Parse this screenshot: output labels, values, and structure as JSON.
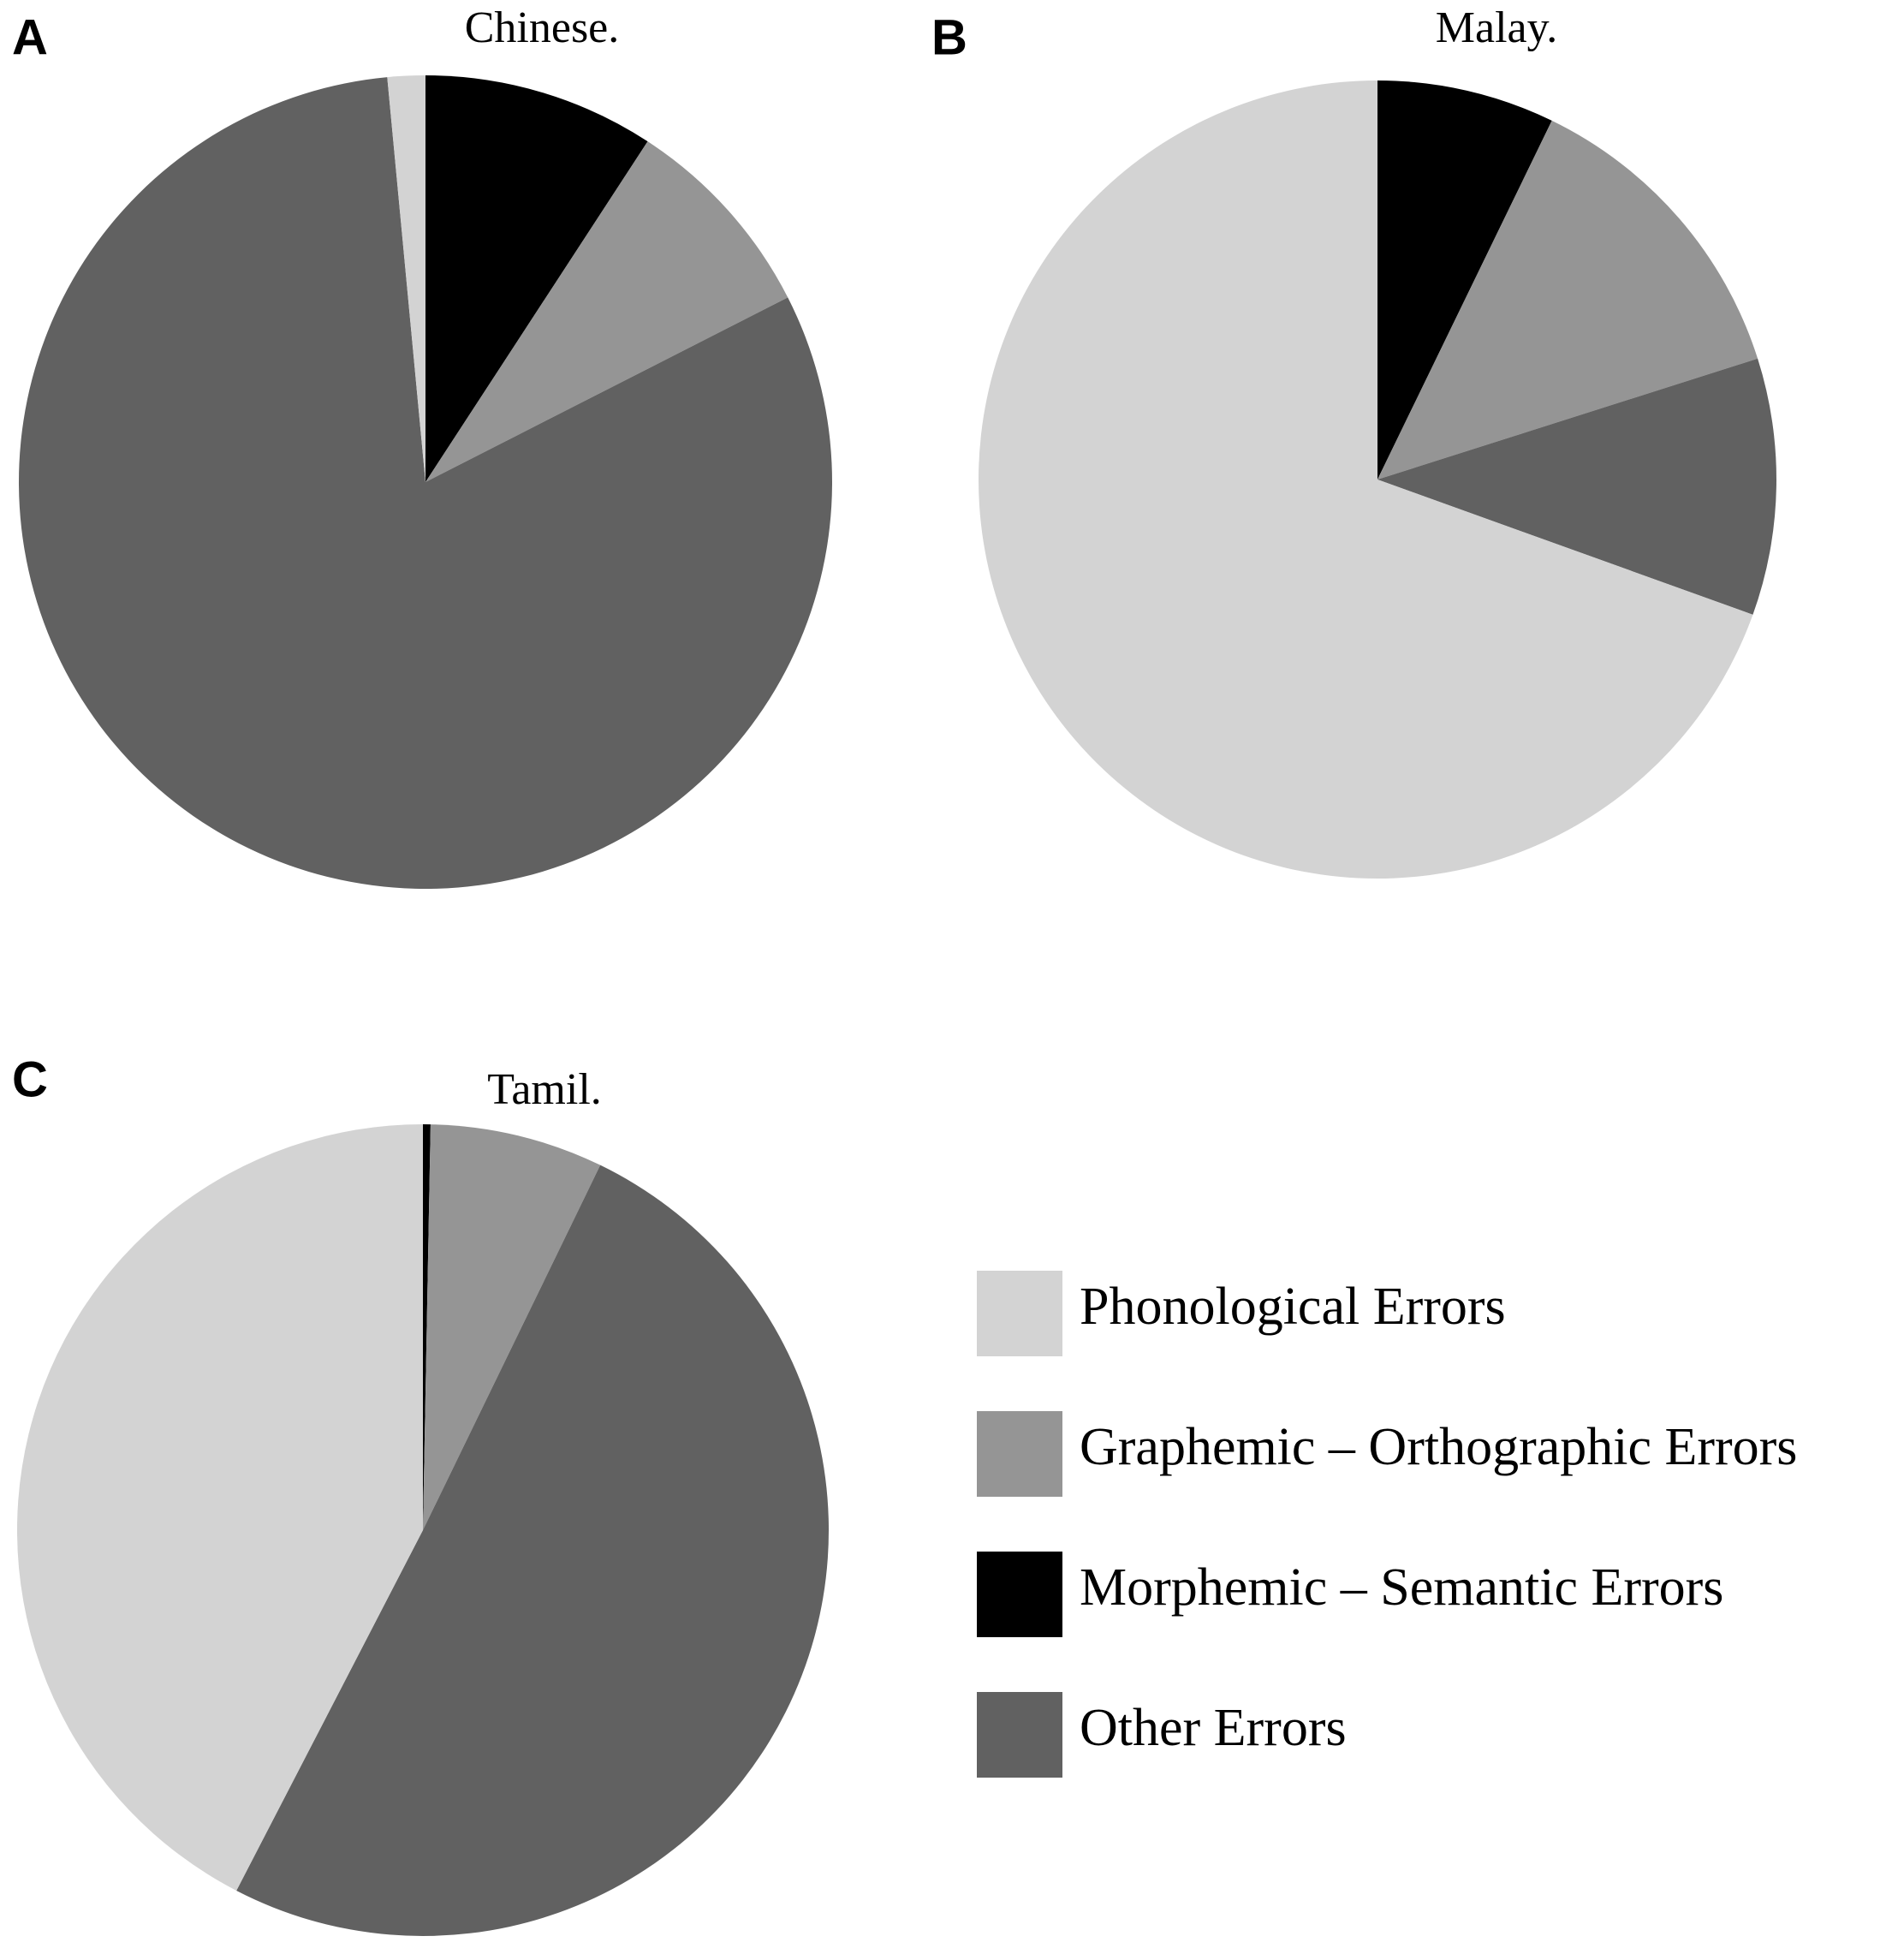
{
  "legend": {
    "labels": [
      "Phonological Errors",
      "Graphemic – Orthographic Errors",
      "Morphemic – Semantic Errors",
      "Other Errors"
    ],
    "colors": [
      "#d3d3d3",
      "#959595",
      "#000000",
      "#616161"
    ]
  },
  "chart_data": [
    {
      "type": "pie",
      "panel": "A",
      "title": "Chinese.",
      "values": [
        1.5,
        8.3,
        9.2,
        81
      ],
      "slice_order": [
        2,
        1,
        3,
        0
      ]
    },
    {
      "type": "pie",
      "panel": "B",
      "title": "Malay.",
      "values": [
        69.5,
        12.9,
        7.2,
        10.4
      ],
      "slice_order": [
        2,
        1,
        3,
        0
      ]
    },
    {
      "type": "pie",
      "panel": "C",
      "title": "Tamil.",
      "values": [
        42.4,
        6.9,
        0.3,
        50.4
      ],
      "slice_order": [
        2,
        1,
        3,
        0
      ]
    }
  ]
}
